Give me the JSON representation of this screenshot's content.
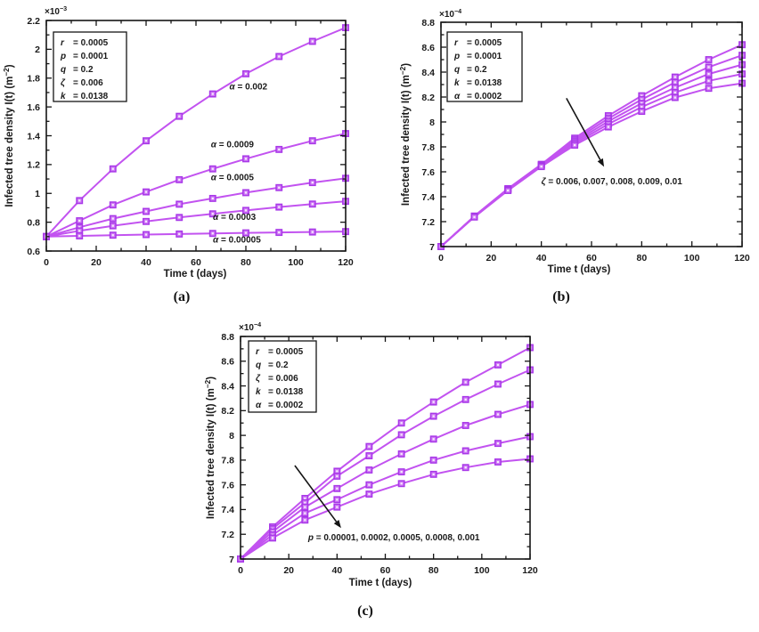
{
  "colors": {
    "curve": "#c253f0",
    "marker_edge": "#a838e8",
    "marker_face": "#cf7af5",
    "marker_center": "#f7ebfd",
    "axis": "#151515",
    "text": "#1a1a1a"
  },
  "chart_data": [
    {
      "id": "a",
      "type": "line",
      "sublabel": "(a)",
      "xlabel": "Time t (days)",
      "ylabel": {
        "prefix": "Infected tree density I(t) (m",
        "sup": "−2",
        "suffix": ")"
      },
      "exponent": {
        "prefix": "×10",
        "sup": "−3"
      },
      "xlim": [
        0,
        120
      ],
      "ylim": [
        0.6,
        2.2
      ],
      "xticks": [
        0,
        20,
        40,
        60,
        80,
        100,
        120
      ],
      "ytick_vals": [
        0.6,
        0.8,
        1.0,
        1.2,
        1.4,
        1.6,
        1.8,
        2.0,
        2.2
      ],
      "ytick_labels": [
        "0.6",
        "0.8",
        "1",
        "1.2",
        "1.4",
        "1.6",
        "1.8",
        "2",
        "2.2"
      ],
      "legend": {
        "lines": [
          {
            "symbol": "r",
            "value": "0.0005"
          },
          {
            "symbol": "p",
            "value": "0.0001"
          },
          {
            "symbol": "q",
            "value": "0.2"
          },
          {
            "symbol": "ζ",
            "value": "0.006"
          },
          {
            "symbol": "k",
            "value": "0.0138"
          }
        ]
      },
      "x": [
        0,
        13.3,
        26.7,
        40,
        53.3,
        66.7,
        80,
        93.3,
        106.7,
        120
      ],
      "series": [
        {
          "name": "alpha=0.002",
          "values": [
            0.7,
            0.95,
            1.17,
            1.365,
            1.535,
            1.69,
            1.83,
            1.95,
            2.055,
            2.15
          ]
        },
        {
          "name": "alpha=0.0009",
          "values": [
            0.7,
            0.81,
            0.92,
            1.01,
            1.095,
            1.17,
            1.24,
            1.305,
            1.365,
            1.415
          ]
        },
        {
          "name": "alpha=0.0005",
          "values": [
            0.7,
            0.765,
            0.825,
            0.875,
            0.925,
            0.965,
            1.005,
            1.04,
            1.075,
            1.105
          ]
        },
        {
          "name": "alpha=0.0003",
          "values": [
            0.7,
            0.74,
            0.775,
            0.805,
            0.833,
            0.858,
            0.882,
            0.905,
            0.926,
            0.945
          ]
        },
        {
          "name": "alpha=0.00005",
          "values": [
            0.7,
            0.705,
            0.71,
            0.714,
            0.718,
            0.722,
            0.726,
            0.729,
            0.732,
            0.735
          ]
        }
      ],
      "annotations": [
        {
          "symbol": "α",
          "rest": " = 0.002",
          "x": 81,
          "y": 1.72,
          "anchor": "middle"
        },
        {
          "symbol": "α",
          "rest": " = 0.0009",
          "x": 74.6,
          "y": 1.32,
          "anchor": "middle"
        },
        {
          "symbol": "α",
          "rest": " = 0.0005",
          "x": 74.6,
          "y": 1.092,
          "anchor": "middle"
        },
        {
          "symbol": "α",
          "rest": " = 0.0003",
          "x": 75.4,
          "y": 0.817,
          "anchor": "middle"
        },
        {
          "symbol": "α",
          "rest": " = 0.00005",
          "x": 76.4,
          "y": 0.66,
          "anchor": "middle"
        }
      ],
      "arrow": null
    },
    {
      "id": "b",
      "type": "line",
      "sublabel": "(b)",
      "xlabel": "Time t (days)",
      "ylabel": {
        "prefix": "Infected tree density I(t) (m",
        "sup": "−2",
        "suffix": ")"
      },
      "exponent": {
        "prefix": "×10",
        "sup": "−4"
      },
      "xlim": [
        0,
        120
      ],
      "ylim": [
        7.0,
        8.8
      ],
      "xticks": [
        0,
        20,
        40,
        60,
        80,
        100,
        120
      ],
      "ytick_vals": [
        7.0,
        7.2,
        7.4,
        7.6,
        7.8,
        8.0,
        8.2,
        8.4,
        8.6,
        8.8
      ],
      "ytick_labels": [
        "7",
        "7.2",
        "7.4",
        "7.6",
        "7.8",
        "8",
        "8.2",
        "8.4",
        "8.6",
        "8.8"
      ],
      "legend": {
        "lines": [
          {
            "symbol": "r",
            "value": "0.0005"
          },
          {
            "symbol": "p",
            "value": "0.0001"
          },
          {
            "symbol": "q",
            "value": "0.2"
          },
          {
            "symbol": "k",
            "value": "0.0138"
          },
          {
            "symbol": "α",
            "value": "0.0002"
          }
        ]
      },
      "x": [
        0,
        13.3,
        26.7,
        40,
        53.3,
        66.7,
        80,
        93.3,
        106.7,
        120
      ],
      "series": [
        {
          "name": "zeta=0.006",
          "values": [
            7.0,
            7.245,
            7.465,
            7.66,
            7.87,
            8.05,
            8.21,
            8.36,
            8.5,
            8.62
          ]
        },
        {
          "name": "zeta=0.007",
          "values": [
            7.0,
            7.243,
            7.462,
            7.656,
            7.856,
            8.028,
            8.18,
            8.318,
            8.44,
            8.535
          ]
        },
        {
          "name": "zeta=0.008",
          "values": [
            7.0,
            7.241,
            7.458,
            7.652,
            7.842,
            8.005,
            8.15,
            8.276,
            8.385,
            8.46
          ]
        },
        {
          "name": "zeta=0.009",
          "values": [
            7.0,
            7.239,
            7.454,
            7.647,
            7.828,
            7.983,
            8.12,
            8.236,
            8.33,
            8.385
          ]
        },
        {
          "name": "zeta=0.01",
          "values": [
            7.0,
            7.237,
            7.45,
            7.642,
            7.814,
            7.96,
            8.085,
            8.196,
            8.27,
            8.31
          ]
        }
      ],
      "annotations": [
        {
          "symbol": "ζ",
          "rest": " = 0.006, 0.007, 0.008, 0.009, 0.01",
          "x": 40,
          "y": 7.5,
          "anchor": "start"
        }
      ],
      "arrow": {
        "x1": 50,
        "y1": 8.19,
        "x2": 65,
        "y2": 7.64
      }
    },
    {
      "id": "c",
      "type": "line",
      "sublabel": "(c)",
      "xlabel": "Time t (days)",
      "ylabel": {
        "prefix": "Infected tree density I(t) (m",
        "sup": "−2",
        "suffix": ")"
      },
      "exponent": {
        "prefix": "×10",
        "sup": "−4"
      },
      "xlim": [
        0,
        120
      ],
      "ylim": [
        7.0,
        8.8
      ],
      "xticks": [
        0,
        20,
        40,
        60,
        80,
        100,
        120
      ],
      "ytick_vals": [
        7.0,
        7.2,
        7.4,
        7.6,
        7.8,
        8.0,
        8.2,
        8.4,
        8.6,
        8.8
      ],
      "ytick_labels": [
        "7",
        "7.2",
        "7.4",
        "7.6",
        "7.8",
        "8",
        "8.2",
        "8.4",
        "8.6",
        "8.8"
      ],
      "legend": {
        "lines": [
          {
            "symbol": "r",
            "value": "0.0005"
          },
          {
            "symbol": "q",
            "value": "0.2"
          },
          {
            "symbol": "ζ",
            "value": "0.006"
          },
          {
            "symbol": "k",
            "value": "0.0138"
          },
          {
            "symbol": "α",
            "value": "0.0002"
          }
        ]
      },
      "x": [
        0,
        13.3,
        26.7,
        40,
        53.3,
        66.7,
        80,
        93.3,
        106.7,
        120
      ],
      "series": [
        {
          "name": "p=0.00001",
          "values": [
            7.0,
            7.26,
            7.49,
            7.71,
            7.91,
            8.1,
            8.27,
            8.43,
            8.57,
            8.71
          ]
        },
        {
          "name": "p=0.0002",
          "values": [
            7.0,
            7.245,
            7.455,
            7.67,
            7.835,
            8.005,
            8.155,
            8.29,
            8.415,
            8.53
          ]
        },
        {
          "name": "p=0.0005",
          "values": [
            7.0,
            7.22,
            7.42,
            7.57,
            7.72,
            7.85,
            7.97,
            8.08,
            8.17,
            8.25
          ]
        },
        {
          "name": "p=0.0008",
          "values": [
            7.0,
            7.195,
            7.37,
            7.48,
            7.6,
            7.705,
            7.8,
            7.875,
            7.935,
            7.99
          ]
        },
        {
          "name": "p=0.001",
          "values": [
            7.0,
            7.17,
            7.315,
            7.42,
            7.525,
            7.61,
            7.685,
            7.74,
            7.785,
            7.81
          ]
        }
      ],
      "annotations": [
        {
          "symbol": "p",
          "rest": " = 0.00001, 0.0002, 0.0005, 0.0008, 0.001",
          "x": 28,
          "y": 7.15,
          "anchor": "start"
        }
      ],
      "arrow": {
        "x1": 22.5,
        "y1": 7.756,
        "x2": 41.7,
        "y2": 7.25
      }
    }
  ]
}
